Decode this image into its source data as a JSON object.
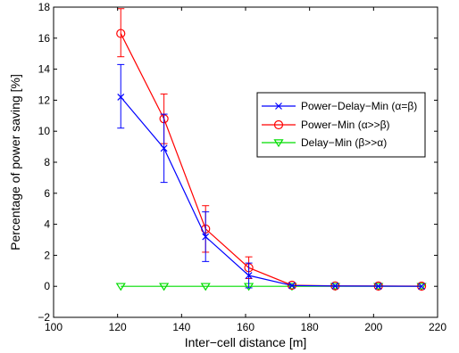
{
  "chart_data": {
    "type": "line",
    "title": "",
    "xlabel": "Inter−cell distance [m]",
    "ylabel": "Percentage of power saving [%]",
    "xlim": [
      100,
      220
    ],
    "ylim": [
      -2,
      18
    ],
    "xticks": [
      100,
      120,
      140,
      160,
      180,
      200,
      220
    ],
    "yticks": [
      -2,
      0,
      2,
      4,
      6,
      8,
      10,
      12,
      14,
      16,
      18
    ],
    "xtick_labels": [
      "100",
      "120",
      "140",
      "160",
      "180",
      "200",
      "220"
    ],
    "ytick_labels": [
      "−2",
      "0",
      "2",
      "4",
      "6",
      "8",
      "10",
      "12",
      "14",
      "16",
      "18"
    ],
    "grid": false,
    "legend_position": "center-right",
    "x": [
      121,
      134.5,
      147.5,
      161,
      174.5,
      188,
      201.5,
      215
    ],
    "series": [
      {
        "name": "Power−Delay−Min (α=β)",
        "color": "#0000ff",
        "marker": "x",
        "values": [
          12.2,
          8.9,
          3.2,
          0.7,
          0.05,
          0.02,
          0.01,
          0.0
        ],
        "error_low": [
          10.2,
          6.7,
          1.6,
          -0.1,
          0.0,
          0.0,
          0.0,
          0.0
        ],
        "error_high": [
          14.3,
          11.1,
          4.8,
          1.5,
          0.1,
          0.05,
          0.02,
          0.02
        ]
      },
      {
        "name": "Power−Min (α>>β)",
        "color": "#ff0000",
        "marker": "circle",
        "values": [
          16.3,
          10.8,
          3.7,
          1.2,
          0.07,
          0.03,
          0.02,
          0.01
        ],
        "error_low": [
          14.8,
          9.2,
          2.2,
          0.5,
          0.0,
          0.0,
          0.0,
          0.0
        ],
        "error_high": [
          17.9,
          12.4,
          5.2,
          1.9,
          0.12,
          0.05,
          0.03,
          0.02
        ]
      },
      {
        "name": "Delay−Min (β>>α)",
        "color": "#00dd00",
        "marker": "triangle-down",
        "values": [
          0,
          0,
          0,
          0,
          0,
          0,
          0,
          0
        ]
      }
    ]
  }
}
